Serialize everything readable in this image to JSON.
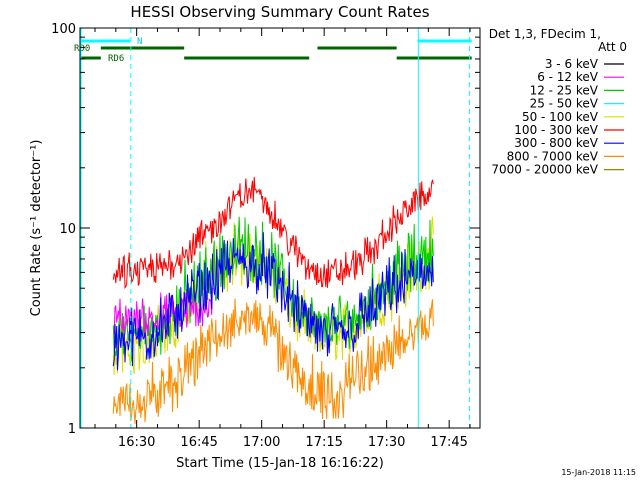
{
  "chart_data": {
    "type": "line",
    "title": "HESSI Observing Summary Count Rates",
    "xlabel": "Start Time (15-Jan-18 16:16:22)",
    "ylabel": "Count Rate (s⁻¹ detector⁻¹)",
    "y_scale": "log",
    "ylim": [
      1,
      100
    ],
    "y_ticks": [
      "1",
      "10",
      "100"
    ],
    "x_range_minutes_after_16_16_22": [
      0,
      96
    ],
    "x_ticks": [
      {
        "label": "16:30",
        "minutes": 13.6
      },
      {
        "label": "16:45",
        "minutes": 28.6
      },
      {
        "label": "17:00",
        "minutes": 43.6
      },
      {
        "label": "17:15",
        "minutes": 58.6
      },
      {
        "label": "17:30",
        "minutes": 73.6
      },
      {
        "label": "17:45",
        "minutes": 88.6
      }
    ],
    "legend": {
      "position": "right",
      "header": [
        "Det 1,3, FDecim 1,",
        "Att 0"
      ],
      "entries": [
        {
          "label": "3 - 6 keV",
          "color": "#000000"
        },
        {
          "label": "6 - 12 keV",
          "color": "#ff00ff"
        },
        {
          "label": "12 - 25 keV",
          "color": "#00cc00"
        },
        {
          "label": "25 - 50 keV",
          "color": "#00ffff"
        },
        {
          "label": "50 - 100 keV",
          "color": "#dddd00"
        },
        {
          "label": "100 - 300 keV",
          "color": "#ff0000"
        },
        {
          "label": "300 - 800 keV",
          "color": "#0000ff"
        },
        {
          "label": "800 - 7000 keV",
          "color": "#ff8c00"
        },
        {
          "label": "7000 - 20000 keV",
          "color": "#8b8b00"
        }
      ]
    },
    "flag_bars": {
      "RD0": {
        "label": "RD0",
        "segments": [
          [
            5,
            25
          ],
          [
            57,
            76
          ]
        ]
      },
      "RD6": {
        "label": "RD6",
        "segments": [
          [
            0,
            5
          ],
          [
            25,
            55
          ],
          [
            76,
            94
          ]
        ]
      },
      "N": {
        "label": "N",
        "segments": [
          [
            0,
            12
          ],
          [
            81,
            94
          ]
        ]
      }
    },
    "night_boundaries_minutes": [
      12.2,
      81.2,
      93.5
    ],
    "series": [
      {
        "color": "#ff8c00",
        "envelope": [
          [
            8,
            1.0,
            2.0
          ],
          [
            13,
            1.0,
            2.0
          ],
          [
            20,
            1.0,
            2.5
          ],
          [
            25,
            1.3,
            3.2
          ],
          [
            30,
            1.8,
            4.0
          ],
          [
            36,
            2.5,
            4.8
          ],
          [
            40,
            2.8,
            5.0
          ],
          [
            44,
            2.5,
            4.7
          ],
          [
            48,
            1.8,
            4.0
          ],
          [
            52,
            1.3,
            3.0
          ],
          [
            57,
            1.0,
            2.5
          ],
          [
            62,
            1.0,
            2.3
          ],
          [
            66,
            1.3,
            2.8
          ],
          [
            72,
            1.6,
            3.3
          ],
          [
            78,
            2.0,
            4.0
          ],
          [
            85,
            2.5,
            5.0
          ]
        ]
      },
      {
        "color": "#dddd00",
        "envelope": [
          [
            8,
            1.6,
            3.5
          ],
          [
            20,
            2.0,
            4.5
          ],
          [
            30,
            3.5,
            9.0
          ],
          [
            38,
            5.0,
            12.0
          ],
          [
            44,
            4.5,
            11.0
          ],
          [
            52,
            2.5,
            5.5
          ],
          [
            58,
            2.0,
            4.0
          ],
          [
            66,
            2.2,
            5.0
          ],
          [
            76,
            3.5,
            9.0
          ],
          [
            85,
            5.0,
            12.0
          ]
        ]
      },
      {
        "color": "#00cc00",
        "envelope": [
          [
            8,
            2.0,
            4.0
          ],
          [
            20,
            2.3,
            5.0
          ],
          [
            30,
            3.5,
            9.5
          ],
          [
            38,
            5.5,
            13.0
          ],
          [
            44,
            5.0,
            12.0
          ],
          [
            52,
            3.0,
            6.0
          ],
          [
            58,
            2.3,
            4.5
          ],
          [
            66,
            2.5,
            5.5
          ],
          [
            76,
            4.0,
            9.5
          ],
          [
            85,
            5.5,
            13.0
          ]
        ]
      },
      {
        "color": "#ff00ff",
        "envelope": [
          [
            8,
            2.5,
            4.8
          ],
          [
            20,
            2.8,
            5.0
          ],
          [
            28,
            3.0,
            5.5
          ],
          [
            32,
            3.2,
            6.0
          ]
        ]
      },
      {
        "color": "#0000ff",
        "envelope": [
          [
            8,
            1.7,
            4.2
          ],
          [
            20,
            2.2,
            5.0
          ],
          [
            30,
            3.5,
            8.0
          ],
          [
            38,
            5.0,
            10.5
          ],
          [
            44,
            4.5,
            10.0
          ],
          [
            52,
            2.7,
            6.0
          ],
          [
            58,
            2.0,
            4.5
          ],
          [
            66,
            2.3,
            5.0
          ],
          [
            76,
            3.5,
            8.0
          ],
          [
            85,
            4.5,
            10.0
          ]
        ]
      },
      {
        "color": "#ff0000",
        "envelope": [
          [
            8,
            4.5,
            7.5
          ],
          [
            20,
            5.0,
            8.5
          ],
          [
            28,
            6.5,
            11.0
          ],
          [
            34,
            9.0,
            15.0
          ],
          [
            38,
            12.0,
            18.0
          ],
          [
            42,
            13.0,
            19.0
          ],
          [
            46,
            10.0,
            15.0
          ],
          [
            50,
            7.0,
            11.0
          ],
          [
            54,
            5.2,
            8.5
          ],
          [
            58,
            4.8,
            7.5
          ],
          [
            64,
            5.0,
            8.0
          ],
          [
            70,
            6.0,
            10.0
          ],
          [
            76,
            9.0,
            14.0
          ],
          [
            82,
            12.0,
            18.0
          ],
          [
            85,
            13.0,
            19.0
          ]
        ]
      }
    ]
  },
  "footer": {
    "timestamp": "15-Jan-2018 11:15"
  }
}
